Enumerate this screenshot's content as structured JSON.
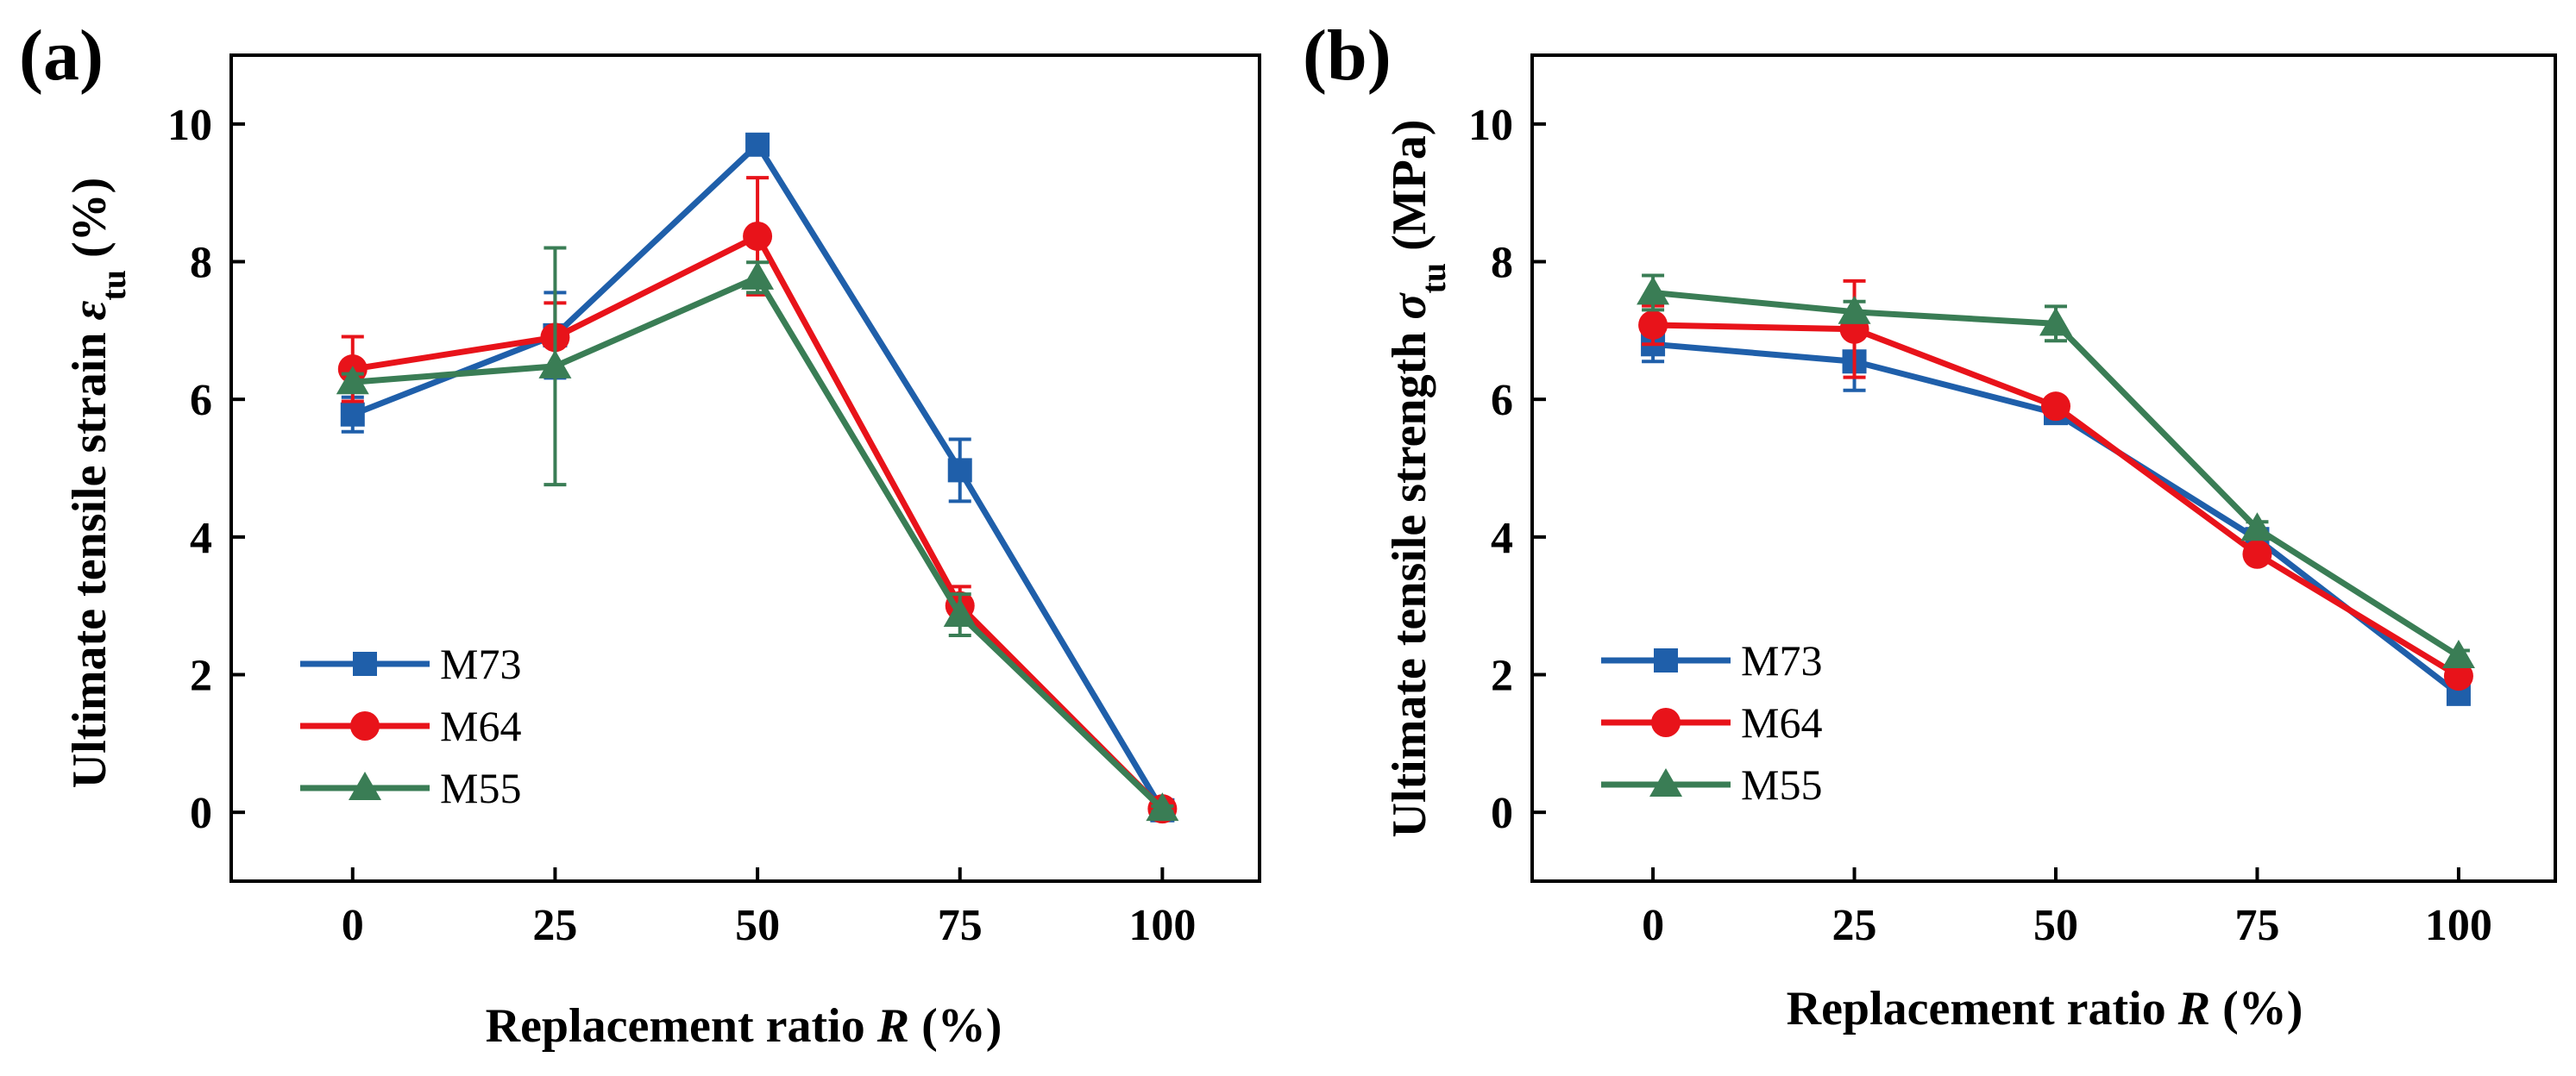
{
  "colors": {
    "M73": "#1f5faa",
    "M64": "#e8131a",
    "M55": "#3a7d55"
  },
  "chart_data": [
    {
      "type": "line",
      "panel_label": "(a)",
      "title": "",
      "xlabel_main": "Replacement ratio ",
      "xlabel_var": "R",
      "xlabel_unit": " (%)",
      "ylabel_main": "Ultimate tensile strain ",
      "ylabel_var": "ε",
      "ylabel_sub": "tu",
      "ylabel_unit": " (%)",
      "x_ticks": [
        0,
        25,
        50,
        75,
        100
      ],
      "x_tick_labels": [
        "0",
        "25",
        "50",
        "75",
        "100"
      ],
      "y_ticks": [
        0,
        2,
        4,
        6,
        8,
        10
      ],
      "y_tick_labels": [
        "0",
        "2",
        "4",
        "6",
        "8",
        "10"
      ],
      "xlim": [
        -15,
        112
      ],
      "ylim": [
        -1,
        11
      ],
      "legend_position": "bottom-left",
      "series": [
        {
          "name": "M73",
          "marker": "square",
          "x": [
            0,
            25,
            50,
            75,
            100
          ],
          "y": [
            5.78,
            6.93,
            9.7,
            4.97,
            0.03
          ],
          "err": [
            0.25,
            0.62,
            0.12,
            0.45,
            0.04
          ]
        },
        {
          "name": "M64",
          "marker": "circle",
          "x": [
            0,
            25,
            50,
            75,
            100
          ],
          "y": [
            6.44,
            6.9,
            8.37,
            3.0,
            0.05
          ],
          "err": [
            0.47,
            0.5,
            0.85,
            0.28,
            0.04
          ]
        },
        {
          "name": "M55",
          "marker": "triangle",
          "x": [
            0,
            25,
            50,
            75,
            100
          ],
          "y": [
            6.25,
            6.48,
            7.77,
            2.87,
            0.05
          ],
          "err": [
            0.12,
            1.72,
            0.22,
            0.3,
            0.04
          ]
        }
      ]
    },
    {
      "type": "line",
      "panel_label": "(b)",
      "title": "",
      "xlabel_main": "Replacement ratio ",
      "xlabel_var": "R",
      "xlabel_unit": " (%)",
      "ylabel_main": "Ultimate tensile strength ",
      "ylabel_var": "σ",
      "ylabel_sub": "tu",
      "ylabel_unit": " (MPa)",
      "x_ticks": [
        0,
        25,
        50,
        75,
        100
      ],
      "x_tick_labels": [
        "0",
        "25",
        "50",
        "75",
        "100"
      ],
      "y_ticks": [
        0,
        2,
        4,
        6,
        8,
        10
      ],
      "y_tick_labels": [
        "0",
        "2",
        "4",
        "6",
        "8",
        "10"
      ],
      "xlim": [
        -15,
        112
      ],
      "ylim": [
        -1,
        11
      ],
      "legend_position": "bottom-left",
      "series": [
        {
          "name": "M73",
          "marker": "square",
          "x": [
            0,
            25,
            50,
            75,
            100
          ],
          "y": [
            6.8,
            6.55,
            5.8,
            3.97,
            1.72
          ],
          "err": [
            0.25,
            0.42,
            0.08,
            0.1,
            0.08
          ]
        },
        {
          "name": "M64",
          "marker": "circle",
          "x": [
            0,
            25,
            50,
            75,
            100
          ],
          "y": [
            7.08,
            7.02,
            5.9,
            3.75,
            1.98
          ],
          "err": [
            0.28,
            0.7,
            0.08,
            0.1,
            0.08
          ]
        },
        {
          "name": "M55",
          "marker": "triangle",
          "x": [
            0,
            25,
            50,
            75,
            100
          ],
          "y": [
            7.55,
            7.27,
            7.1,
            4.12,
            2.27
          ],
          "err": [
            0.25,
            0.15,
            0.25,
            0.1,
            0.08
          ]
        }
      ]
    }
  ]
}
